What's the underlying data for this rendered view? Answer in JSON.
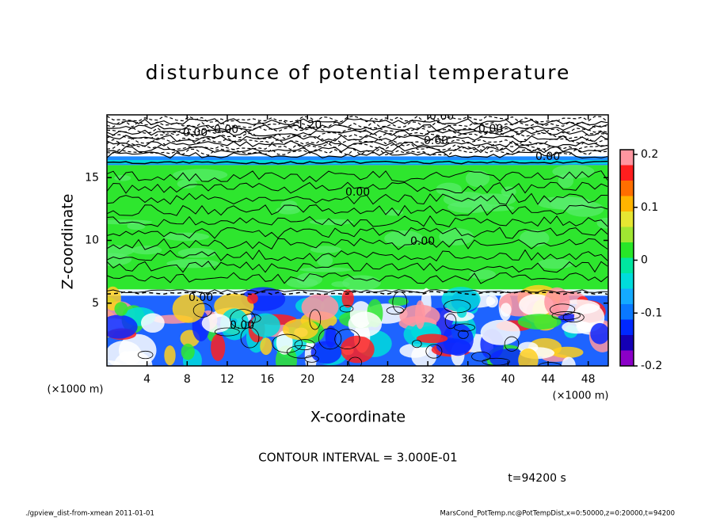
{
  "chart_data": {
    "type": "contour",
    "title": "disturbunce of potential temperature",
    "xlabel": "X-coordinate",
    "ylabel": "Z-coordinate",
    "x_unit": "(×1000 m)",
    "xlim": [
      0,
      50
    ],
    "xticks": [
      4,
      8,
      12,
      16,
      20,
      24,
      28,
      32,
      36,
      40,
      44,
      48
    ],
    "ylim": [
      0,
      20
    ],
    "yticks": [
      5,
      10,
      15
    ],
    "colorbar": {
      "lim": [
        -0.2,
        0.2
      ],
      "ticks": [
        -0.2,
        -0.1,
        0,
        0.1,
        0.2
      ],
      "colors": [
        "#8b00c8",
        "#1400b4",
        "#0028ff",
        "#0a78ff",
        "#14aaff",
        "#00dcdc",
        "#00e6a0",
        "#28e628",
        "#a0e632",
        "#e6e632",
        "#ffb400",
        "#ff6e00",
        "#ff1e1e",
        "#ff96a0"
      ]
    },
    "contour_labels": [
      "0.00",
      "0.00",
      "-1.20",
      "0.60",
      "0.60",
      "0.00",
      "0.00",
      "0.00",
      "0.00",
      "0.00",
      "0.00"
    ],
    "contour_interval": "CONTOUR INTERVAL = 3.000E-01",
    "time_label": "t=94200 s",
    "footer_left": "./gpview_dist-from-xmean   2011-01-01",
    "footer_right": "MarsCond_PotTemp.nc@PotTempDist,x=0:50000,z=0:20000,t=94200"
  }
}
